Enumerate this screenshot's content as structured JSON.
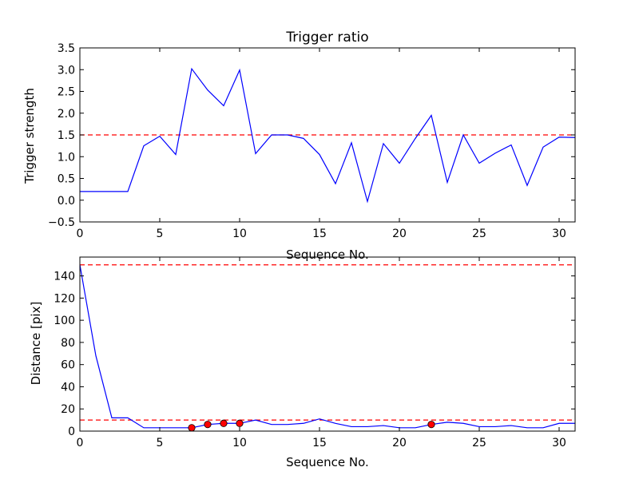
{
  "colors": {
    "line": "#0000ff",
    "reference": "#ff0000",
    "marker_fill": "#ff0000",
    "marker_stroke": "#000000"
  },
  "chart_data": [
    {
      "type": "line",
      "title": "Trigger ratio",
      "xlabel": "Sequence No.",
      "ylabel": "Trigger strength",
      "xlim": [
        0,
        31
      ],
      "ylim": [
        -0.5,
        3.5
      ],
      "xticks": [
        "0",
        "5",
        "10",
        "15",
        "20",
        "25",
        "30"
      ],
      "yticks": [
        "−0.5",
        "0.0",
        "0.5",
        "1.0",
        "1.5",
        "2.0",
        "2.5",
        "3.0",
        "3.5"
      ],
      "x": [
        0,
        1,
        2,
        3,
        4,
        5,
        6,
        7,
        8,
        9,
        10,
        11,
        12,
        13,
        14,
        15,
        16,
        17,
        18,
        19,
        20,
        21,
        22,
        23,
        24,
        25,
        26,
        27,
        28,
        29,
        30,
        31
      ],
      "series": [
        {
          "values": [
            0.2,
            0.2,
            0.2,
            0.2,
            1.25,
            1.47,
            1.05,
            3.02,
            2.53,
            2.17,
            2.99,
            1.07,
            1.5,
            1.5,
            1.42,
            1.05,
            0.38,
            1.32,
            -0.03,
            1.3,
            0.85,
            1.42,
            1.95,
            0.41,
            1.5,
            0.85,
            1.08,
            1.27,
            0.34,
            1.22,
            1.45,
            1.44
          ]
        }
      ],
      "reference_lines": [
        1.5
      ],
      "grid": false
    },
    {
      "type": "line",
      "title": "",
      "xlabel": "Sequence No.",
      "ylabel": "Distance [pix]",
      "xlim": [
        0,
        31
      ],
      "ylim": [
        0,
        157
      ],
      "xticks": [
        "0",
        "5",
        "10",
        "15",
        "20",
        "25",
        "30"
      ],
      "yticks": [
        "0",
        "20",
        "40",
        "60",
        "80",
        "100",
        "120",
        "140"
      ],
      "x": [
        0,
        1,
        2,
        3,
        4,
        5,
        6,
        7,
        8,
        9,
        10,
        11,
        12,
        13,
        14,
        15,
        16,
        17,
        18,
        19,
        20,
        21,
        22,
        23,
        24,
        25,
        26,
        27,
        28,
        29,
        30,
        31
      ],
      "series": [
        {
          "values": [
            150,
            68,
            12,
            12,
            3,
            3,
            3,
            3,
            6,
            7,
            7,
            10,
            6,
            6,
            7,
            11,
            7,
            4,
            4,
            5,
            3,
            3,
            6,
            8,
            7,
            4,
            4,
            5,
            3,
            3,
            7,
            7
          ]
        }
      ],
      "markers": [
        {
          "x": 7,
          "y": 3
        },
        {
          "x": 8,
          "y": 6
        },
        {
          "x": 9,
          "y": 7
        },
        {
          "x": 10,
          "y": 7
        },
        {
          "x": 22,
          "y": 6
        }
      ],
      "reference_lines": [
        150,
        10
      ],
      "grid": false
    }
  ]
}
